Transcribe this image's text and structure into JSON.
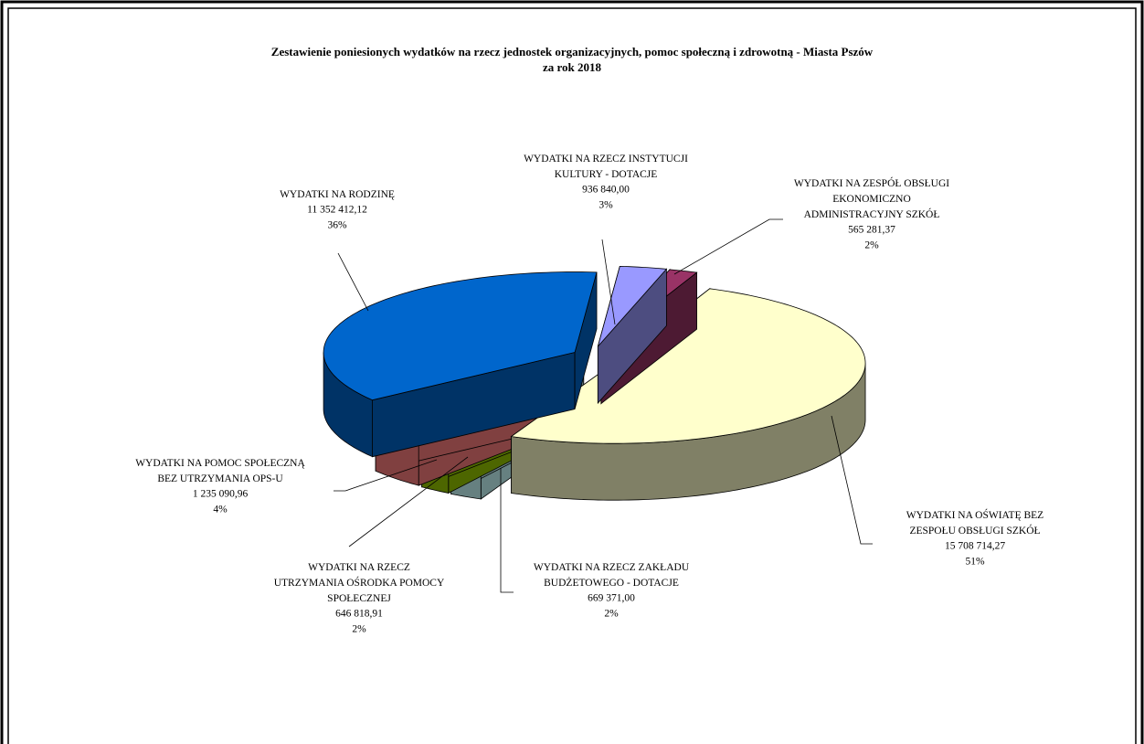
{
  "chart_data": {
    "type": "pie",
    "title": "Zestawienie poniesionych wydatków na rzecz jednostek organizacyjnych, pomoc społeczną i zdrowotną - Miasta Pszów",
    "subtitle": "za rok 2018",
    "categories": [
      "WYDATKI NA RZECZ INSTYTUCJI KULTURY - DOTACJE",
      "WYDATKI NA ZESPÓŁ OBSŁUGI EKONOMICZNO ADMINISTRACYJNY SZKÓŁ",
      "WYDATKI NA OŚWIATĘ BEZ ZESPOŁU OBSŁUGI SZKÓŁ",
      "WYDATKI NA RZECZ ZAKŁADU BUDŻETOWEGO - DOTACJE",
      "WYDATKI NA RZECZ UTRZYMANIA OŚRODKA POMOCY SPOŁECZNEJ",
      "WYDATKI NA POMOC SPOŁECZNĄ BEZ UTRZYMANIA OPS-U",
      "WYDATKI NA RODZINĘ"
    ],
    "values": [
      936840.0,
      565281.37,
      15708714.27,
      669371.0,
      646818.91,
      1235090.96,
      11352412.12
    ],
    "value_labels": [
      "936 840,00",
      "565 281,37",
      "15 708 714,27",
      "669 371,00",
      "646 818,91",
      "1 235 090,96",
      "11 352 412,12"
    ],
    "percent_labels": [
      "3%",
      "2%",
      "51%",
      "2%",
      "2%",
      "4%",
      "36%"
    ],
    "colors": [
      "#9999ff",
      "#993366",
      "#ffffcc",
      "#ccffff",
      "#99cc00",
      "#ff8080",
      "#0066cc"
    ]
  }
}
